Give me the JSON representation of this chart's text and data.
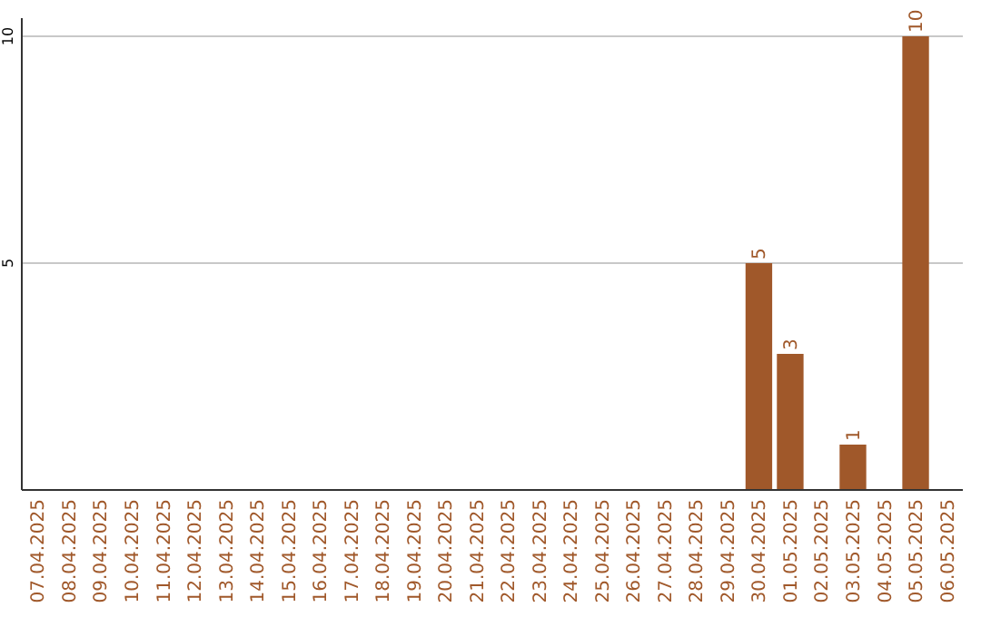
{
  "chart_data": {
    "type": "bar",
    "categories": [
      "07.04.2025",
      "08.04.2025",
      "09.04.2025",
      "10.04.2025",
      "11.04.2025",
      "12.04.2025",
      "13.04.2025",
      "14.04.2025",
      "15.04.2025",
      "16.04.2025",
      "17.04.2025",
      "18.04.2025",
      "19.04.2025",
      "20.04.2025",
      "21.04.2025",
      "22.04.2025",
      "23.04.2025",
      "24.04.2025",
      "25.04.2025",
      "26.04.2025",
      "27.04.2025",
      "28.04.2025",
      "29.04.2025",
      "30.04.2025",
      "01.05.2025",
      "02.05.2025",
      "03.05.2025",
      "04.05.2025",
      "05.05.2025",
      "06.05.2025"
    ],
    "values": [
      0,
      0,
      0,
      0,
      0,
      0,
      0,
      0,
      0,
      0,
      0,
      0,
      0,
      0,
      0,
      0,
      0,
      0,
      0,
      0,
      0,
      0,
      0,
      5,
      3,
      0,
      1,
      0,
      10,
      0
    ],
    "value_labels": [
      null,
      null,
      null,
      null,
      null,
      null,
      null,
      null,
      null,
      null,
      null,
      null,
      null,
      null,
      null,
      null,
      null,
      null,
      null,
      null,
      null,
      null,
      null,
      "5",
      "3",
      null,
      "1",
      null,
      "10",
      null
    ],
    "color": "#a0582a",
    "ylim": [
      0,
      10
    ],
    "yticks": [
      5,
      10
    ],
    "grid": "y"
  }
}
